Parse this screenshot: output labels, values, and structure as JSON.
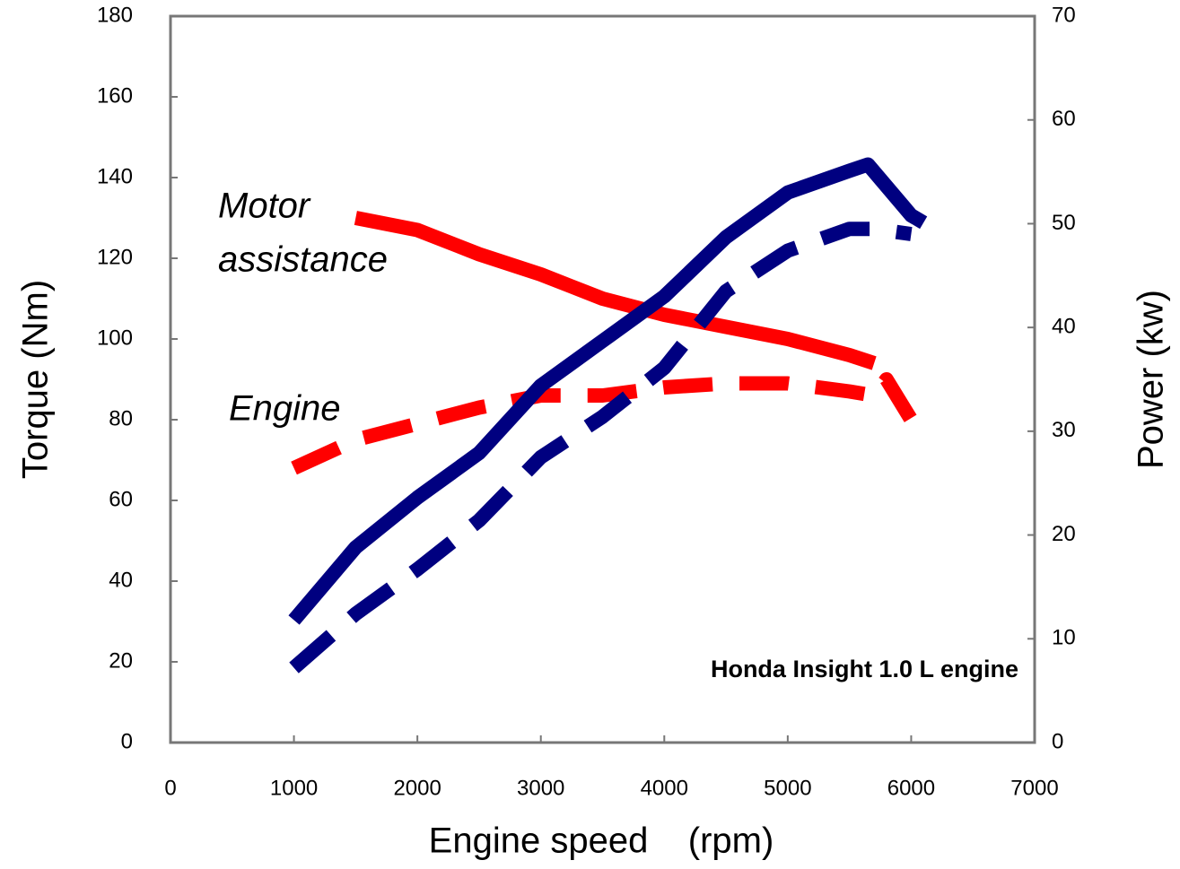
{
  "chart_data": {
    "type": "line",
    "xlabel": "Engine speed    (rpm)",
    "ylabel": "Torque (Nm)",
    "y2label": "Power (kw)",
    "annotations": [
      "Motor",
      "assistance",
      "Engine",
      "Honda Insight 1.0 L engine"
    ],
    "annotation_colors": [
      "#000000",
      "#000000",
      "#000000",
      "#cc0077"
    ],
    "xlim": [
      0,
      7000
    ],
    "xticks": [
      0,
      1000,
      2000,
      3000,
      4000,
      5000,
      6000,
      7000
    ],
    "ylim": [
      0,
      180
    ],
    "yticks": [
      0,
      20,
      40,
      60,
      80,
      100,
      120,
      140,
      160,
      180
    ],
    "y2lim": [
      0,
      70
    ],
    "y2ticks": [
      0,
      10,
      20,
      30,
      40,
      50,
      60,
      70
    ],
    "series": [
      {
        "color": "#ff0000",
        "linestyle": "solid",
        "x": [
          1500,
          2000,
          2500,
          3000,
          3500,
          4000,
          4500,
          5000,
          5500,
          5700
        ],
        "values": [
          130,
          127,
          121,
          116,
          110,
          106,
          103,
          100,
          96,
          94
        ]
      },
      {
        "color": "#ff0000",
        "linestyle": "dashed",
        "x": [
          1000,
          1500,
          2000,
          2500,
          3000,
          3500,
          4000,
          4500,
          5000,
          5500,
          5700,
          5800,
          6000
        ],
        "values": [
          68,
          75,
          79,
          83,
          86,
          86,
          88,
          89,
          89,
          87,
          86,
          90,
          80
        ]
      },
      {
        "color": "#000080",
        "linestyle": "solid",
        "axis": "y2",
        "x": [
          1000,
          1500,
          2000,
          2500,
          3000,
          3500,
          4000,
          4500,
          5000,
          5500,
          5650,
          6000,
          6100
        ],
        "values": [
          11.8,
          18.8,
          23.6,
          27.9,
          34.4,
          38.7,
          43,
          48.7,
          53,
          55.1,
          55.7,
          50.8,
          50.1
        ]
      },
      {
        "color": "#000080",
        "linestyle": "dashed",
        "axis": "y2",
        "x": [
          1000,
          1500,
          2000,
          2500,
          3000,
          3500,
          4000,
          4500,
          5000,
          5500,
          5700,
          6000
        ],
        "values": [
          7.2,
          12.4,
          16.7,
          21.4,
          27.5,
          31.4,
          36.1,
          43.5,
          47.4,
          49.5,
          49.5,
          49
        ]
      }
    ]
  }
}
